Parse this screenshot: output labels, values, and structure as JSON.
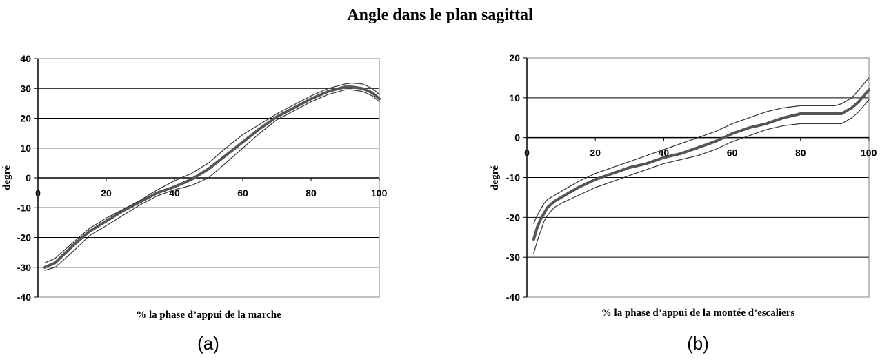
{
  "figure": {
    "title": "Angle dans le plan sagittal"
  },
  "chart_data": [
    {
      "type": "line",
      "panel_label": "(a)",
      "title": "",
      "xlabel": "% la phase d’appui de la marche",
      "ylabel": "degré",
      "xlim": [
        0,
        100
      ],
      "ylim": [
        -40,
        40
      ],
      "x_ticks": [
        0,
        20,
        40,
        60,
        80,
        100
      ],
      "y_ticks": [
        40,
        30,
        20,
        10,
        0,
        -10,
        -20,
        -30,
        -40
      ],
      "grid": "horizontal",
      "series": [
        {
          "role": "mean",
          "x": [
            2,
            5,
            10,
            15,
            20,
            25,
            30,
            35,
            40,
            45,
            50,
            55,
            60,
            65,
            70,
            75,
            80,
            85,
            90,
            92,
            95,
            98,
            100
          ],
          "y": [
            -30,
            -28.5,
            -23,
            -18,
            -14.5,
            -11,
            -8,
            -5,
            -3,
            -0.5,
            3,
            7.5,
            12,
            16.5,
            20.5,
            23.5,
            26.5,
            29,
            30.5,
            30.5,
            30,
            28.5,
            26.5
          ]
        },
        {
          "role": "upper",
          "x": [
            2,
            5,
            10,
            15,
            20,
            25,
            30,
            35,
            40,
            45,
            50,
            55,
            60,
            65,
            70,
            75,
            80,
            85,
            90,
            92,
            95,
            98,
            100
          ],
          "y": [
            -28.5,
            -27,
            -22,
            -17,
            -13.5,
            -10.5,
            -7.5,
            -4,
            -1,
            1.5,
            5,
            10,
            14.5,
            18,
            21.5,
            24.5,
            27.5,
            30,
            31.5,
            31.8,
            31.5,
            30,
            28
          ]
        },
        {
          "role": "lower",
          "x": [
            2,
            5,
            10,
            15,
            20,
            25,
            30,
            35,
            40,
            45,
            50,
            55,
            60,
            65,
            70,
            75,
            80,
            85,
            90,
            92,
            95,
            98,
            100
          ],
          "y": [
            -31,
            -30,
            -25,
            -19.5,
            -16,
            -12.5,
            -9,
            -6,
            -4,
            -2.5,
            0,
            5,
            10,
            15,
            19.5,
            22.5,
            25.5,
            28,
            29.5,
            29.5,
            29,
            27.5,
            25.5
          ]
        }
      ]
    },
    {
      "type": "line",
      "panel_label": "(b)",
      "title": "",
      "xlabel": "% la phase d’appui de la montée d’escaliers",
      "ylabel": "degré",
      "xlim": [
        0,
        100
      ],
      "ylim": [
        -40,
        20
      ],
      "x_ticks": [
        0,
        20,
        40,
        60,
        80,
        100
      ],
      "y_ticks": [
        20,
        10,
        0,
        -10,
        -20,
        -30,
        -40
      ],
      "grid": "horizontal",
      "series": [
        {
          "role": "mean",
          "x": [
            2,
            3,
            4,
            5,
            6,
            8,
            10,
            15,
            20,
            25,
            30,
            35,
            40,
            45,
            50,
            55,
            60,
            65,
            70,
            75,
            80,
            85,
            88,
            90,
            92,
            95,
            97,
            99,
            100
          ],
          "y": [
            -25.5,
            -22.5,
            -20.5,
            -19,
            -17.5,
            -16,
            -15,
            -12.5,
            -10.5,
            -9,
            -7.5,
            -6.5,
            -5,
            -4,
            -2.5,
            -1,
            1,
            2.5,
            3.5,
            5,
            6,
            6,
            6,
            6,
            6,
            7.5,
            9,
            11,
            12
          ]
        },
        {
          "role": "upper",
          "x": [
            2,
            3,
            4,
            5,
            6,
            8,
            10,
            15,
            20,
            25,
            30,
            35,
            40,
            45,
            50,
            55,
            60,
            65,
            70,
            75,
            80,
            85,
            88,
            90,
            92,
            95,
            97,
            99,
            100
          ],
          "y": [
            -21.5,
            -19.5,
            -18,
            -16.5,
            -15.5,
            -14.5,
            -13.5,
            -11,
            -9,
            -7.5,
            -6,
            -4.5,
            -3,
            -1.5,
            0,
            1.5,
            3.5,
            5,
            6.5,
            7.5,
            8,
            8,
            8,
            8,
            8.5,
            10,
            12,
            14,
            15
          ]
        },
        {
          "role": "lower",
          "x": [
            2,
            3,
            4,
            5,
            6,
            8,
            10,
            15,
            20,
            25,
            30,
            35,
            40,
            45,
            50,
            55,
            60,
            65,
            70,
            75,
            80,
            85,
            88,
            90,
            92,
            95,
            97,
            99,
            100
          ],
          "y": [
            -29,
            -26,
            -23.5,
            -21,
            -19.5,
            -17.5,
            -16.5,
            -14.5,
            -12.5,
            -11,
            -9.5,
            -8,
            -6.5,
            -5.5,
            -4.5,
            -3,
            -1,
            0.5,
            2,
            3,
            3.5,
            3.5,
            3.5,
            3.5,
            3.5,
            5,
            6.5,
            8.5,
            9.5
          ]
        }
      ]
    }
  ]
}
